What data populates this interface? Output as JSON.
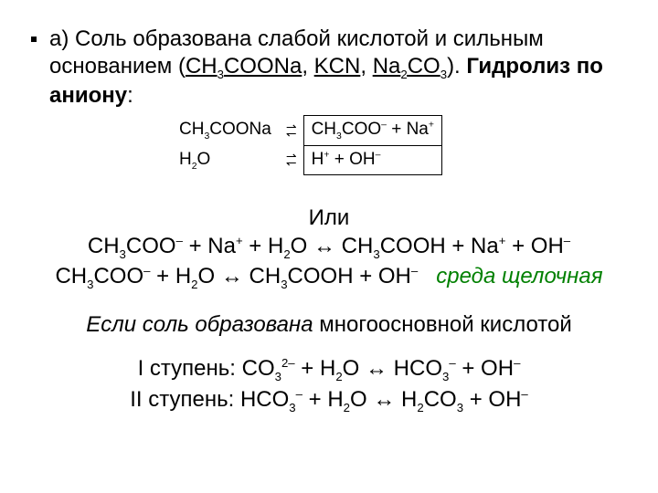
{
  "intro": {
    "prefix": "а) ",
    "text1": "Соль образована слабой кислотой и сильным основанием (",
    "formula1_a": "CH",
    "formula1_b": "3",
    "formula1_c": "COONa",
    "sep1": ", ",
    "formula2": "KCN",
    "sep2": ", ",
    "formula3_a": "Na",
    "formula3_b": "2",
    "formula3_c": "CO",
    "formula3_d": "3",
    "text2": "). ",
    "bold1": "Гидролиз по аниону",
    "colon": ":"
  },
  "box": {
    "r1c1_a": "CH",
    "r1c1_b": "3",
    "r1c1_c": "COONa",
    "r1c2_a": "CH",
    "r1c2_b": "3",
    "r1c2_c": "COO",
    "r1c2_d": "–",
    "r1c2_e": " + Na",
    "r1c2_f": "+",
    "r2c1_a": "H",
    "r2c1_b": "2",
    "r2c1_c": "O",
    "r2c2_a": "H",
    "r2c2_b": "+",
    "r2c2_c": " + OH",
    "r2c2_d": "–"
  },
  "or": "Или",
  "eq1": {
    "p1": "CH",
    "p2": "3",
    "p3": "COO",
    "p4": "–",
    "p5": " + Na",
    "p6": "+",
    "p7": " + H",
    "p8": "2",
    "p9": "O  ↔ CH",
    "p10": "3",
    "p11": "COOH + Na",
    "p12": "+",
    "p13": " + OH",
    "p14": "–"
  },
  "eq2": {
    "p1": "CH",
    "p2": "3",
    "p3": "COO",
    "p4": "–",
    "p5": " + H",
    "p6": "2",
    "p7": "O ↔ CH",
    "p8": "3",
    "p9": "COOH + OH",
    "p10": "–"
  },
  "env": "среда щелочная",
  "poly": {
    "a": "Если соль образована ",
    "b": "многоосновной кислотой"
  },
  "step1": {
    "label": "I ступень: ",
    "p1": "CO",
    "p2": "3",
    "p3": "2–",
    "p4": " + H",
    "p5": "2",
    "p6": "O ↔ HCO",
    "p7": "3",
    "p8": "–",
    "p9": " + OH",
    "p10": "–"
  },
  "step2": {
    "label": "II ступень: ",
    "p1": "HCO",
    "p2": "3",
    "p3": "–",
    "p4": " + H",
    "p5": "2",
    "p6": "O ↔ H",
    "p7": "2",
    "p8": "CO",
    "p9": "3",
    "p10": " + OH",
    "p11": "–"
  }
}
